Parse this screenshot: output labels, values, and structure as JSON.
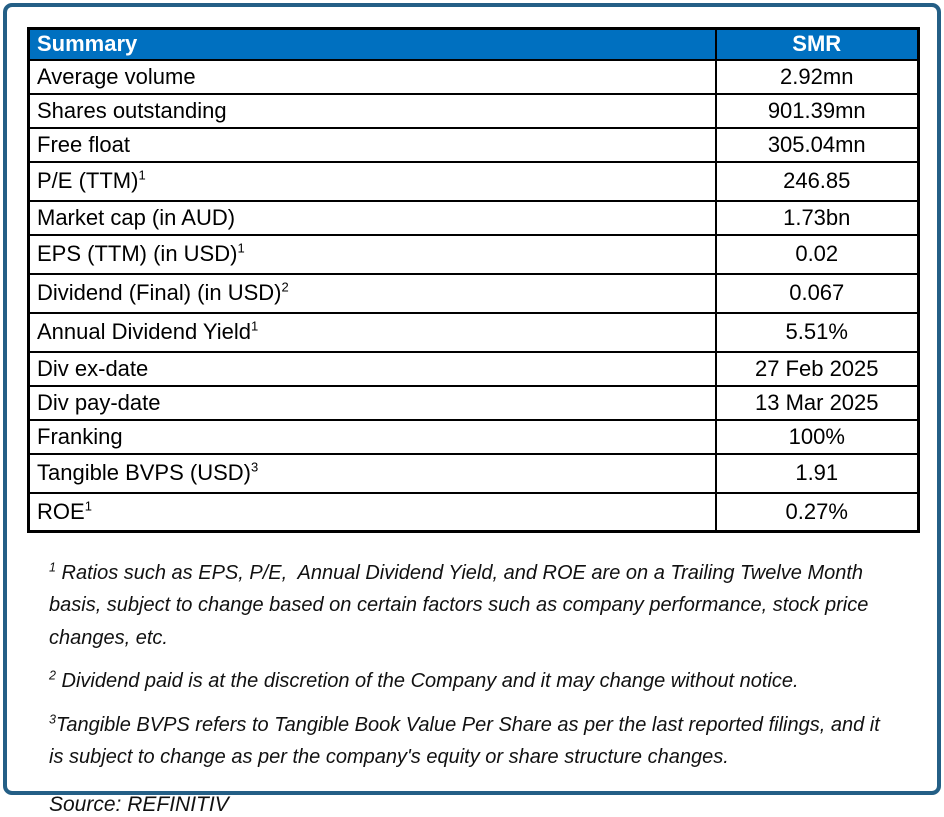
{
  "colors": {
    "header_bg": "#0070C0",
    "header_text": "#FFFFFF",
    "panel_border": "#245F86",
    "grid_border": "#000000"
  },
  "table": {
    "header": {
      "label": "Summary",
      "value_label": "SMR"
    },
    "rows": [
      {
        "label": "Average volume",
        "sup": "",
        "value": "2.92mn"
      },
      {
        "label": "Shares outstanding",
        "sup": "",
        "value": "901.39mn"
      },
      {
        "label": "Free float",
        "sup": "",
        "value": "305.04mn"
      },
      {
        "label": "P/E (TTM)",
        "sup": "1",
        "value": "246.85"
      },
      {
        "label": "Market cap (in AUD)",
        "sup": "",
        "value": "1.73bn"
      },
      {
        "label": "EPS (TTM) (in USD)",
        "sup": "1",
        "value": "0.02"
      },
      {
        "label": "Dividend (Final) (in USD)",
        "sup": "2",
        "value": "0.067"
      },
      {
        "label": "Annual Dividend Yield",
        "sup": "1",
        "value": "5.51%"
      },
      {
        "label": "Div ex-date",
        "sup": "",
        "value": "27 Feb 2025"
      },
      {
        "label": "Div pay-date",
        "sup": "",
        "value": "13 Mar 2025"
      },
      {
        "label": "Franking",
        "sup": "",
        "value": "100%"
      },
      {
        "label": "Tangible BVPS (USD)",
        "sup": "3",
        "value": "1.91"
      },
      {
        "label": "ROE",
        "sup": "1",
        "value": "0.27%"
      }
    ]
  },
  "footnotes": [
    {
      "sup": "1",
      "text": " Ratios such as EPS, P/E,  Annual Dividend Yield, and ROE are on a Trailing Twelve Month basis, subject to change based on certain factors such as company performance, stock price changes, etc."
    },
    {
      "sup": "2",
      "text": " Dividend paid is at the discretion of the Company and it may change without notice."
    },
    {
      "sup": "3",
      "text": "Tangible BVPS refers to Tangible Book Value Per Share as per the last reported filings, and it is subject to change as per the company's equity or share structure changes."
    }
  ],
  "source": "Source: REFINITIV"
}
